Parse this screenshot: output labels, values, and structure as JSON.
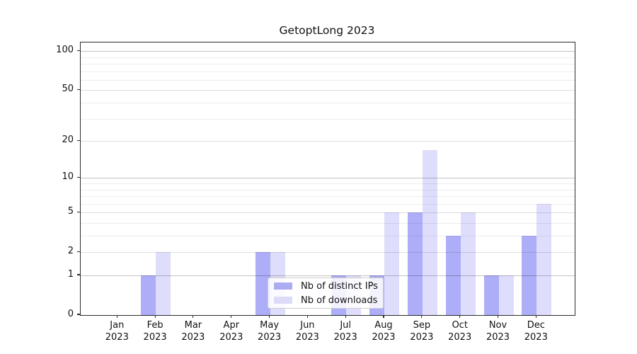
{
  "chart_data": {
    "type": "bar",
    "title": "GetoptLong 2023",
    "categories": [
      "Jan 2023",
      "Feb 2023",
      "Mar 2023",
      "Apr 2023",
      "May 2023",
      "Jun 2023",
      "Jul 2023",
      "Aug 2023",
      "Sep 2023",
      "Oct 2023",
      "Nov 2023",
      "Dec 2023"
    ],
    "series": [
      {
        "name": "Nb of distinct IPs",
        "values": [
          0,
          1,
          0,
          0,
          2,
          0,
          1,
          1,
          5,
          3,
          1,
          3
        ],
        "color": "rgba(20,20,235,0.35)",
        "legend_color": "#acacf3"
      },
      {
        "name": "Nb of downloads",
        "values": [
          0,
          2,
          0,
          0,
          2,
          0,
          1,
          5,
          17,
          5,
          1,
          6
        ],
        "color": "rgba(20,20,235,0.14)",
        "legend_color": "#dcdcf9"
      }
    ],
    "yscale": "log1p",
    "ylim": [
      0,
      115
    ],
    "yticks": [
      0,
      1,
      2,
      5,
      10,
      20,
      50,
      100
    ],
    "yticks_minor": [
      3,
      4,
      6,
      7,
      8,
      9,
      30,
      40,
      60,
      70,
      80,
      90
    ],
    "grid": true,
    "legend_position": "lower center",
    "grid_colors": {
      "power10": "#c3c3c3",
      "major": "#dedede",
      "minor": "#ededed"
    }
  }
}
